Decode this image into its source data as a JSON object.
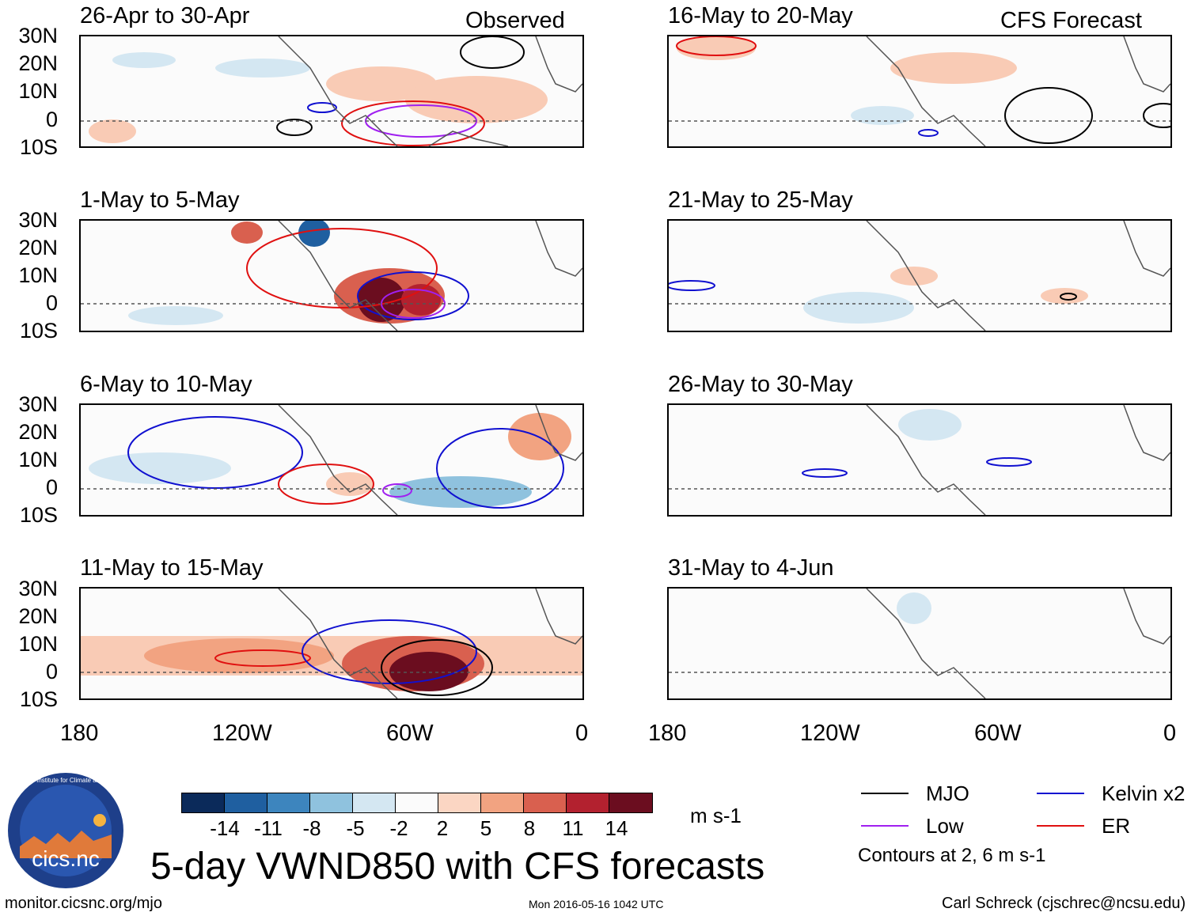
{
  "headers": {
    "left": "Observed",
    "right": "CFS Forecast"
  },
  "panels": [
    {
      "title": "26-Apr to 30-Apr",
      "column": "observed"
    },
    {
      "title": "1-May to 5-May",
      "column": "observed"
    },
    {
      "title": "6-May to 10-May",
      "column": "observed"
    },
    {
      "title": "11-May to 15-May",
      "column": "observed"
    },
    {
      "title": "16-May to 20-May",
      "column": "forecast"
    },
    {
      "title": "21-May to 25-May",
      "column": "forecast"
    },
    {
      "title": "26-May to 30-May",
      "column": "forecast"
    },
    {
      "title": "31-May to 4-Jun",
      "column": "forecast"
    }
  ],
  "lat_labels": [
    "30N",
    "20N",
    "10N",
    "0",
    "10S"
  ],
  "lon_labels": [
    "180",
    "120W",
    "60W",
    "0"
  ],
  "colorbar": {
    "colors": [
      "#0b2a5a",
      "#1f5fa0",
      "#3d85be",
      "#8fc2de",
      "#d4e7f2",
      "#fbfbfb",
      "#fbd6c3",
      "#f2a381",
      "#d9604f",
      "#b3212f",
      "#6b0d1f"
    ],
    "labels": [
      "-14",
      "-11",
      "-8",
      "-5",
      "-2",
      "2",
      "5",
      "8",
      "11",
      "14"
    ],
    "units": "m s-1"
  },
  "legend": [
    {
      "label": "MJO",
      "color": "#000000"
    },
    {
      "label": "Kelvin x2",
      "color": "#1010d0"
    },
    {
      "label": "Low",
      "color": "#a020f0"
    },
    {
      "label": "ER",
      "color": "#e01010"
    }
  ],
  "contours_note": "Contours at 2, 6 m s-1",
  "title": "5-day VWND850 with CFS forecasts",
  "footer": {
    "url": "monitor.cicsnc.org/mjo",
    "timestamp": "Mon 2016-05-16 1042 UTC",
    "author": "Carl Schreck (cjschrec@ncsu.edu)"
  },
  "logo": {
    "ring_text": "Cooperative Institute for Climate and Satellites",
    "name": "cics.nc"
  }
}
